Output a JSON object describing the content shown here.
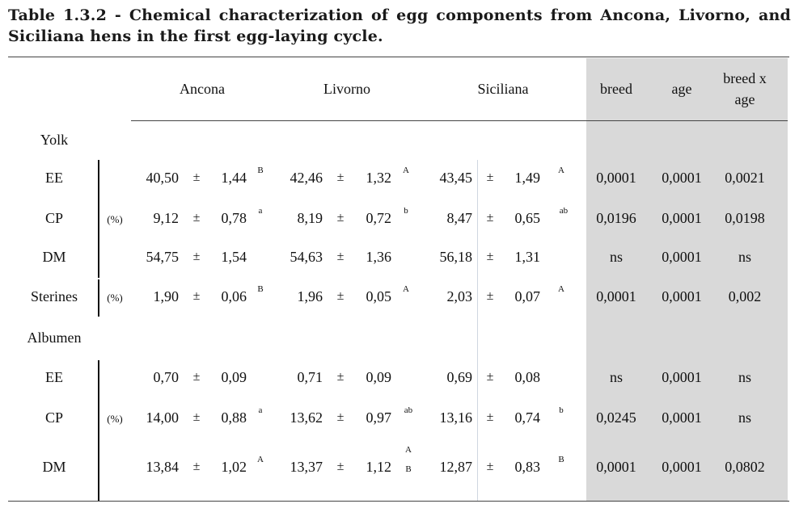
{
  "caption": "Table 1.3.2 - Chemical characterization of egg components from Ancona, Livorno, and Siciliana hens in the first egg-laying cycle.",
  "header": {
    "groups": [
      "Ancona",
      "Livorno",
      "Siciliana"
    ],
    "stats": [
      "breed",
      "age",
      "breed x age"
    ]
  },
  "pm": "±",
  "sections": [
    {
      "label": "Yolk",
      "rows": [
        {
          "param": "EE",
          "unit": "",
          "ancona": [
            "40,50",
            "1,44",
            "B"
          ],
          "livorno": [
            "42,46",
            "1,32",
            "A"
          ],
          "siciliana": [
            "43,45",
            "1,49",
            "A"
          ],
          "p": [
            "0,0001",
            "0,0001",
            "0,0021"
          ]
        },
        {
          "param": "CP",
          "unit": "(%)",
          "ancona": [
            "9,12",
            "0,78",
            "a"
          ],
          "livorno": [
            "8,19",
            "0,72",
            "b"
          ],
          "siciliana": [
            "8,47",
            "0,65",
            "ab"
          ],
          "p": [
            "0,0196",
            "0,0001",
            "0,0198"
          ]
        },
        {
          "param": "DM",
          "unit": "",
          "ancona": [
            "54,75",
            "1,54",
            ""
          ],
          "livorno": [
            "54,63",
            "1,36",
            ""
          ],
          "siciliana": [
            "56,18",
            "1,31",
            ""
          ],
          "p": [
            "ns",
            "0,0001",
            "ns"
          ]
        },
        {
          "param": "Sterines",
          "unit": "(%)",
          "ancona": [
            "1,90",
            "0,06",
            "B"
          ],
          "livorno": [
            "1,96",
            "0,05",
            "A"
          ],
          "siciliana": [
            "2,03",
            "0,07",
            "A"
          ],
          "p": [
            "0,0001",
            "0,0001",
            "0,002"
          ]
        }
      ]
    },
    {
      "label": "Albumen",
      "rows": [
        {
          "param": "EE",
          "unit": "",
          "ancona": [
            "0,70",
            "0,09",
            ""
          ],
          "livorno": [
            "0,71",
            "0,09",
            ""
          ],
          "siciliana": [
            "0,69",
            "0,08",
            ""
          ],
          "p": [
            "ns",
            "0,0001",
            "ns"
          ]
        },
        {
          "param": "CP",
          "unit": "(%)",
          "ancona": [
            "14,00",
            "0,88",
            "a"
          ],
          "livorno": [
            "13,62",
            "0,97",
            "ab"
          ],
          "siciliana": [
            "13,16",
            "0,74",
            "b"
          ],
          "p": [
            "0,0245",
            "0,0001",
            "ns"
          ]
        },
        {
          "param": "DM",
          "unit": "",
          "ancona": [
            "13,84",
            "1,02",
            "A"
          ],
          "livorno": [
            "13,37",
            "1,12",
            "AB"
          ],
          "siciliana": [
            "12,87",
            "0,83",
            "B"
          ],
          "p": [
            "0,0001",
            "0,0001",
            "0,0802"
          ]
        }
      ]
    }
  ]
}
